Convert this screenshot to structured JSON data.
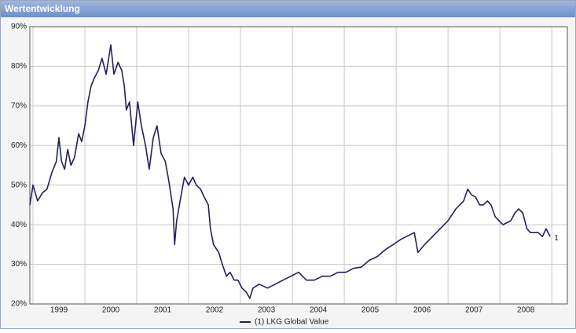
{
  "chart_data": {
    "type": "line",
    "title": "Wertentwicklung",
    "x": [
      1998.94,
      1999.0,
      1999.09,
      1999.18,
      1999.27,
      1999.36,
      1999.45,
      1999.5,
      1999.55,
      1999.61,
      1999.67,
      1999.73,
      1999.8,
      1999.88,
      1999.94,
      2000.0,
      2000.06,
      2000.12,
      2000.18,
      2000.26,
      2000.33,
      2000.41,
      2000.5,
      2000.56,
      2000.64,
      2000.71,
      2000.76,
      2000.8,
      2000.86,
      2000.94,
      2001.02,
      2001.09,
      2001.17,
      2001.24,
      2001.32,
      2001.39,
      2001.47,
      2001.55,
      2001.62,
      2001.7,
      2001.73,
      2001.77,
      2001.85,
      2001.92,
      2002.0,
      2002.08,
      2002.15,
      2002.23,
      2002.3,
      2002.38,
      2002.42,
      2002.48,
      2002.58,
      2002.65,
      2002.73,
      2002.8,
      2002.88,
      2002.95,
      2003.03,
      2003.11,
      2003.18,
      2003.24,
      2003.36,
      2003.52,
      2003.67,
      2003.82,
      2003.97,
      2004.12,
      2004.27,
      2004.42,
      2004.58,
      2004.73,
      2004.88,
      2005.03,
      2005.18,
      2005.33,
      2005.48,
      2005.64,
      2005.79,
      2005.94,
      2006.09,
      2006.24,
      2006.35,
      2006.42,
      2006.55,
      2006.7,
      2006.85,
      2007.0,
      2007.15,
      2007.3,
      2007.38,
      2007.45,
      2007.53,
      2007.61,
      2007.68,
      2007.76,
      2007.83,
      2007.91,
      2008.06,
      2008.21,
      2008.29,
      2008.36,
      2008.44,
      2008.52,
      2008.59,
      2008.74,
      2008.82,
      2008.89,
      2008.97
    ],
    "series": [
      {
        "name": "(1)  LKG Global Value",
        "color": "#1f2358",
        "end_label": "1",
        "values": [
          45,
          50,
          46,
          48,
          49,
          53,
          56,
          62,
          56,
          54,
          59,
          55,
          57,
          63,
          61,
          65,
          71,
          75,
          77,
          79,
          82,
          78,
          85.4,
          78,
          81,
          79,
          75,
          69,
          71,
          60,
          71,
          65,
          60,
          54,
          62,
          65,
          58,
          56,
          51,
          44,
          35,
          41,
          47,
          52,
          50,
          52,
          50,
          49,
          47,
          45,
          39,
          35,
          33,
          30,
          27,
          28,
          26,
          26,
          24,
          23,
          21.4,
          24,
          25,
          24,
          25,
          26,
          27,
          28,
          26,
          26,
          27,
          27,
          28,
          28,
          29,
          29.3,
          31,
          32,
          33.7,
          35,
          36.3,
          37.3,
          38,
          33,
          35,
          37,
          39,
          41,
          44,
          46,
          49,
          47.6,
          47,
          45,
          45,
          46,
          45,
          42,
          40,
          41,
          43,
          44,
          43,
          39,
          38,
          38,
          37,
          39,
          37
        ]
      }
    ],
    "xlim": [
      1998.94,
      2009.3
    ],
    "xticks": [
      {
        "value": 1999.5,
        "label": "1999"
      },
      {
        "value": 2000.5,
        "label": "2000"
      },
      {
        "value": 2001.5,
        "label": "2001"
      },
      {
        "value": 2002.5,
        "label": "2002"
      },
      {
        "value": 2003.5,
        "label": "2003"
      },
      {
        "value": 2004.5,
        "label": "2004"
      },
      {
        "value": 2005.5,
        "label": "2005"
      },
      {
        "value": 2006.5,
        "label": "2006"
      },
      {
        "value": 2007.5,
        "label": "2007"
      },
      {
        "value": 2008.5,
        "label": "2008"
      }
    ],
    "xgrid": [
      1999,
      2000,
      2001,
      2002,
      2003,
      2004,
      2005,
      2006,
      2007,
      2008,
      2009
    ],
    "ylim": [
      20,
      90
    ],
    "yticks": [
      {
        "value": 20,
        "label": "20%"
      },
      {
        "value": 30,
        "label": "30%"
      },
      {
        "value": 40,
        "label": "40%"
      },
      {
        "value": 50,
        "label": "50%"
      },
      {
        "value": 60,
        "label": "60%"
      },
      {
        "value": 70,
        "label": "70%"
      },
      {
        "value": 80,
        "label": "80%"
      },
      {
        "value": 90,
        "label": "90%"
      }
    ],
    "grid": true,
    "legend": "bottom"
  }
}
